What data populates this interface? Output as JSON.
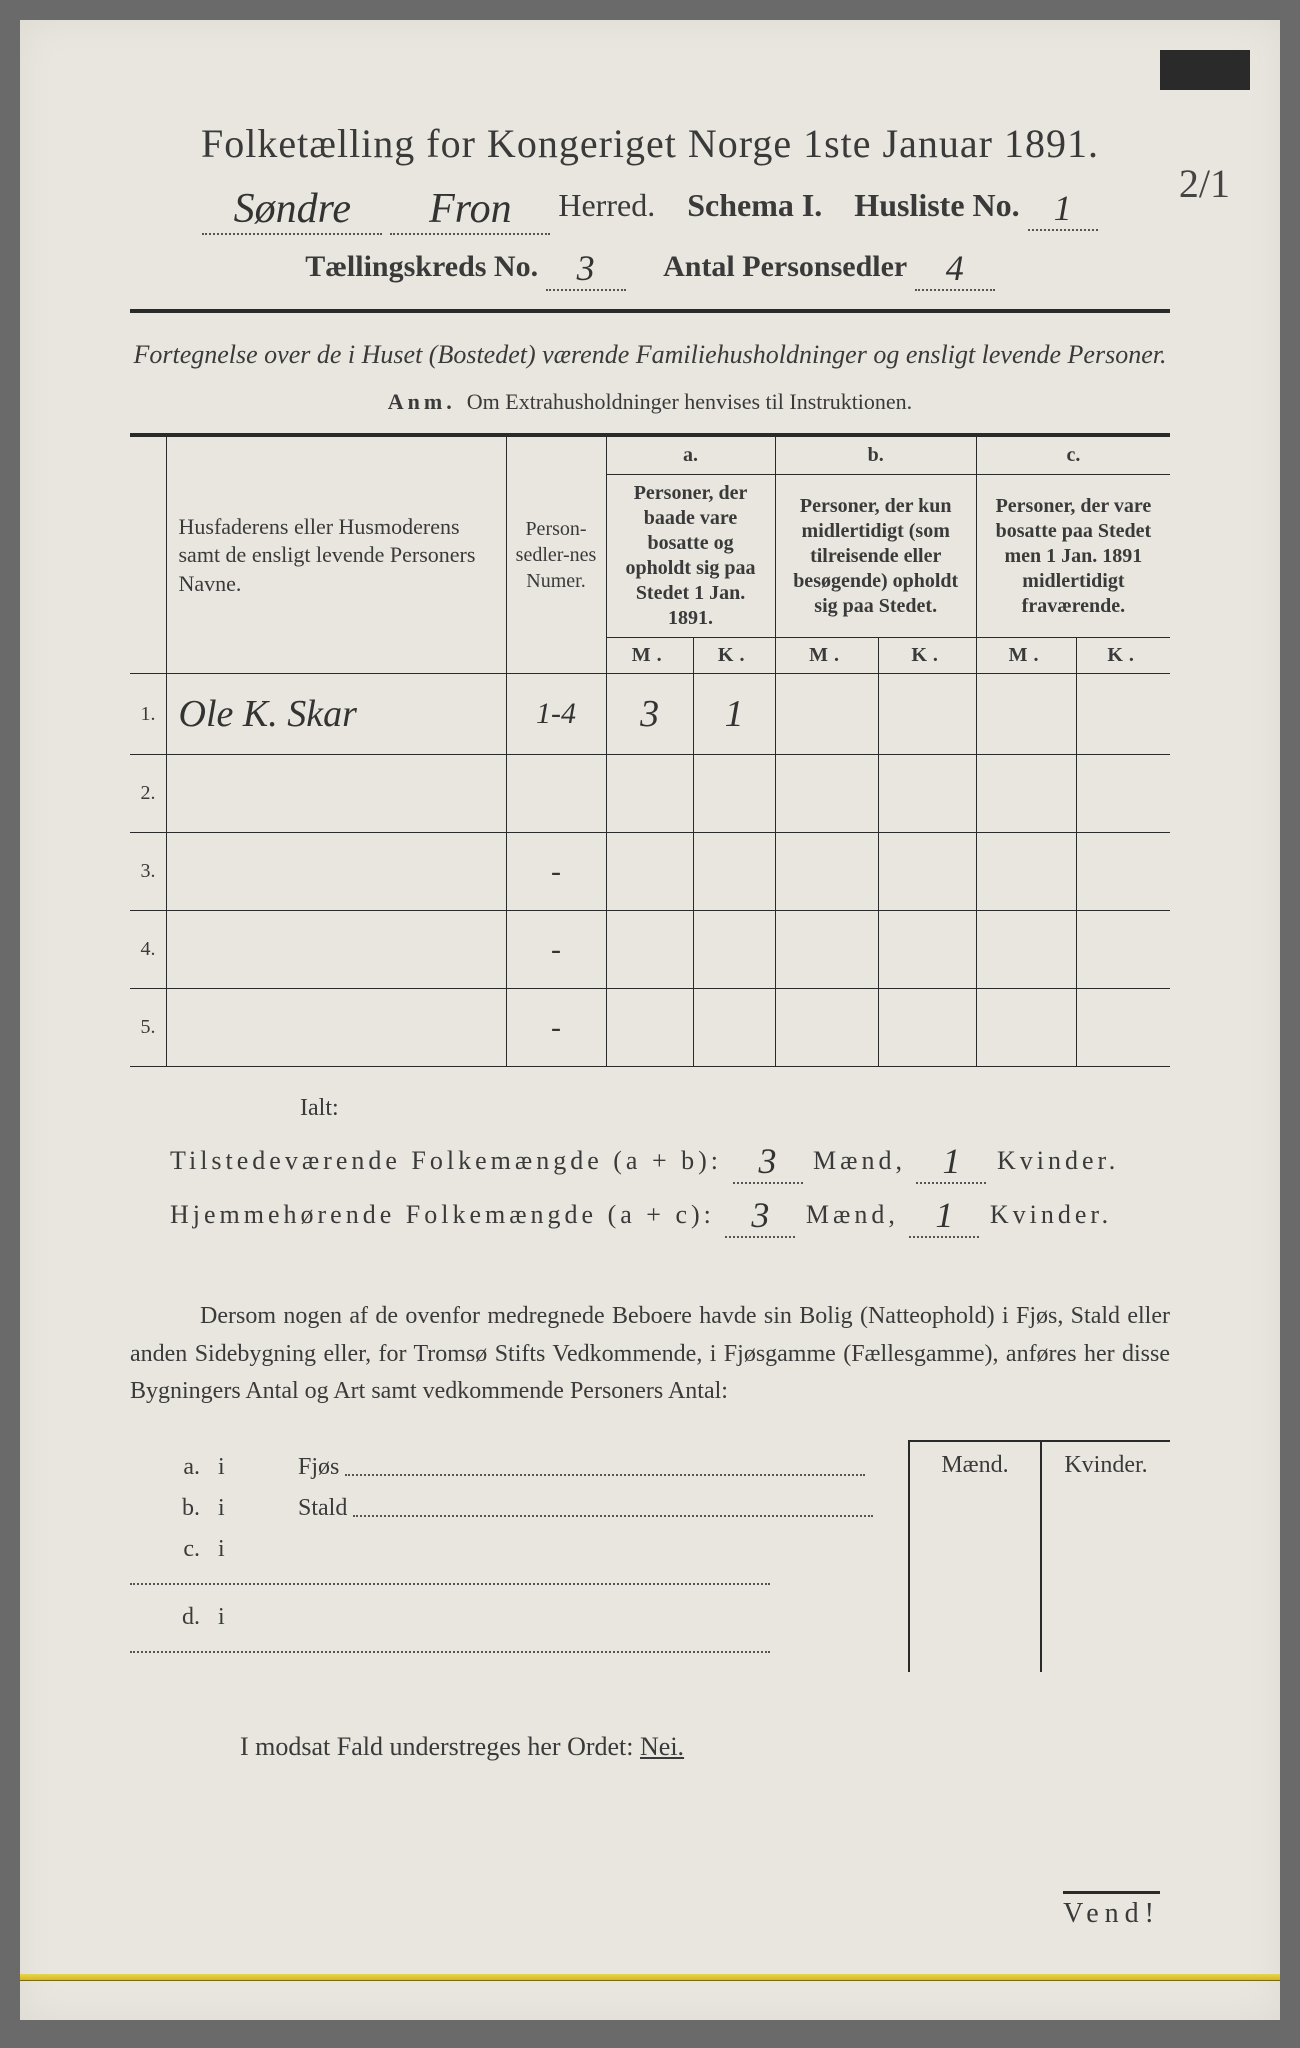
{
  "corner_note": "2/1",
  "title": "Folketælling for Kongeriget Norge 1ste Januar 1891.",
  "line2": {
    "herred_hand1": "Søndre",
    "herred_hand2": "Fron",
    "herred_label": "Herred.",
    "schema": "Schema I.",
    "husliste_label": "Husliste No.",
    "husliste_no": "1"
  },
  "line3": {
    "kreds_label": "Tællingskreds No.",
    "kreds_no": "3",
    "antal_label": "Antal Personsedler",
    "antal_no": "4"
  },
  "subtitle": "Fortegnelse over de i Huset (Bostedet) værende Familiehusholdninger og ensligt levende Personer.",
  "anm_label": "Anm.",
  "anm_text": "Om Extrahusholdninger henvises til Instruktionen.",
  "table": {
    "head_name": "Husfaderens eller Husmoderens samt de ensligt levende Personers Navne.",
    "head_num": "Person-sedler-nes Numer.",
    "col_a_top": "a.",
    "col_a": "Personer, der baade vare bosatte og opholdt sig paa Stedet 1 Jan. 1891.",
    "col_b_top": "b.",
    "col_b": "Personer, der kun midlertidigt (som tilreisende eller besøgende) opholdt sig paa Stedet.",
    "col_c_top": "c.",
    "col_c": "Personer, der vare bosatte paa Stedet men 1 Jan. 1891 midlertidigt fraværende.",
    "m": "M.",
    "k": "K.",
    "rows": [
      {
        "n": "1.",
        "name": "Ole K. Skar",
        "num": "1-4",
        "am": "3",
        "ak": "1",
        "bm": "",
        "bk": "",
        "cm": "",
        "ck": ""
      },
      {
        "n": "2.",
        "name": "",
        "num": "",
        "am": "",
        "ak": "",
        "bm": "",
        "bk": "",
        "cm": "",
        "ck": ""
      },
      {
        "n": "3.",
        "name": "",
        "num": "-",
        "am": "",
        "ak": "",
        "bm": "",
        "bk": "",
        "cm": "",
        "ck": ""
      },
      {
        "n": "4.",
        "name": "",
        "num": "-",
        "am": "",
        "ak": "",
        "bm": "",
        "bk": "",
        "cm": "",
        "ck": ""
      },
      {
        "n": "5.",
        "name": "",
        "num": "-",
        "am": "",
        "ak": "",
        "bm": "",
        "bk": "",
        "cm": "",
        "ck": ""
      }
    ]
  },
  "ialt": "Ialt:",
  "sum1_label": "Tilstedeværende Folkemængde (a + b):",
  "sum2_label": "Hjemmehørende Folkemængde (a + c):",
  "sum1_m": "3",
  "sum1_k": "1",
  "sum2_m": "3",
  "sum2_k": "1",
  "maend": "Mænd,",
  "kvinder": "Kvinder.",
  "para": "Dersom nogen af de ovenfor medregnede Beboere havde sin Bolig (Natteophold) i Fjøs, Stald eller anden Sidebygning eller, for Tromsø Stifts Vedkommende, i Fjøsgamme (Fællesgamme), anføres her disse Bygningers Antal og Art samt vedkommende Personers Antal:",
  "mk_m": "Mænd.",
  "mk_k": "Kvinder.",
  "subrows": [
    {
      "lab": "a.",
      "i": "i",
      "name": "Fjøs"
    },
    {
      "lab": "b.",
      "i": "i",
      "name": "Stald"
    },
    {
      "lab": "c.",
      "i": "i",
      "name": ""
    },
    {
      "lab": "d.",
      "i": "i",
      "name": ""
    }
  ],
  "modsat_pre": "I modsat Fald understreges her Ordet:",
  "nei": "Nei.",
  "vend": "Vend!"
}
